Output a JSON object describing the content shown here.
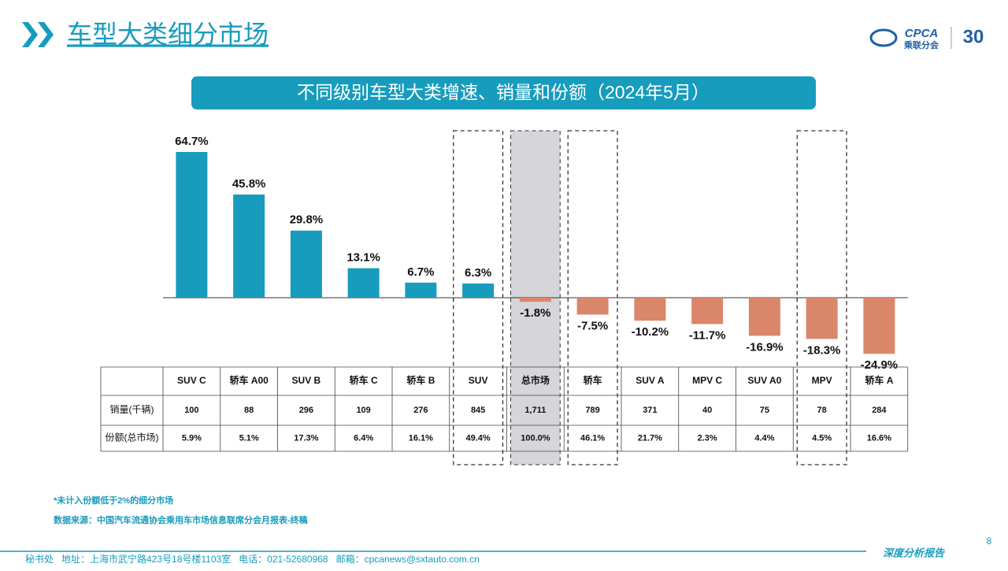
{
  "header": {
    "title": "车型大类细分市场",
    "logo_text": "CPCA",
    "logo_subtext": "乘联分会",
    "anniversary": "30"
  },
  "chart_data": {
    "type": "bar",
    "title": "不同级别车型大类增速、销量和份额（2024年5月）",
    "categories": [
      "SUV C",
      "轿车 A00",
      "SUV B",
      "轿车 C",
      "轿车 B",
      "SUV",
      "总市场",
      "轿车",
      "SUV A",
      "MPV C",
      "SUV A0",
      "MPV",
      "轿车 A"
    ],
    "values": [
      64.7,
      45.8,
      29.8,
      13.1,
      6.7,
      6.3,
      -1.8,
      -7.5,
      -10.2,
      -11.7,
      -16.9,
      -18.3,
      -24.9
    ],
    "value_labels": [
      "64.7%",
      "45.8%",
      "29.8%",
      "13.1%",
      "6.7%",
      "6.3%",
      "-1.8%",
      "-7.5%",
      "-10.2%",
      "-11.7%",
      "-16.9%",
      "-18.3%",
      "-24.9%"
    ],
    "color": "#179cbd",
    "negative_color": "#d9866a"
  },
  "table": {
    "row_labels": [
      "销量(千辆)",
      "份额(总市场)"
    ],
    "rows": [
      [
        "100",
        "88",
        "296",
        "109",
        "276",
        "845",
        "1,711",
        "789",
        "371",
        "40",
        "75",
        "78",
        "284"
      ],
      [
        "5.9%",
        "5.1%",
        "17.3%",
        "6.4%",
        "16.1%",
        "49.4%",
        "100.0%",
        "46.1%",
        "21.7%",
        "2.3%",
        "4.4%",
        "4.5%",
        "16.6%"
      ]
    ]
  },
  "notes": [
    "*未计入份额低于2%的细分市场",
    "数据来源：中国汽车流通协会乘用车市场信息联席分会月报表-终稿"
  ],
  "footer": {
    "contact": "秘书处   地址：上海市武宁路423号18号楼1103室   电话：021-52680968   邮箱：cpcanews@sxtauto.com.cn",
    "tag": "深度分析报告",
    "page": "8"
  }
}
